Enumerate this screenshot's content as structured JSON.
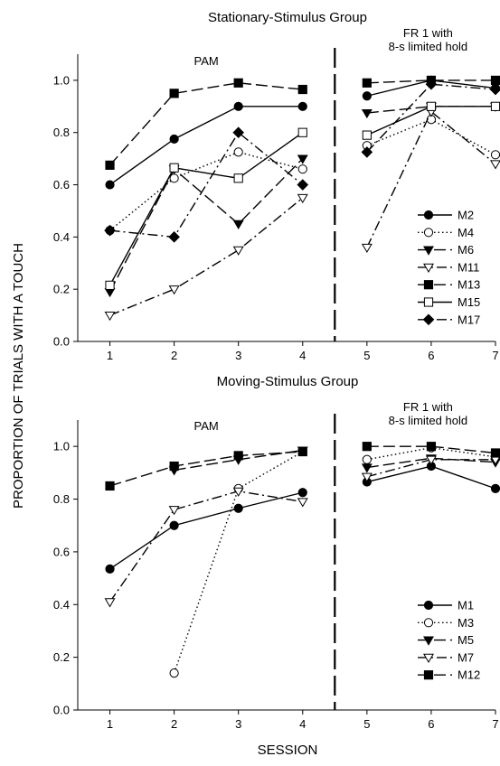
{
  "y_axis_label": "PROPORTION OF TRIALS WITH A TOUCH",
  "x_axis_label": "SESSION",
  "chart_data": [
    {
      "type": "line",
      "title": "Stationary-Stimulus Group",
      "xlabel": "SESSION",
      "ylabel": "PROPORTION OF TRIALS WITH A TOUCH",
      "ylim": [
        0,
        1.1
      ],
      "xlim": [
        0.5,
        7
      ],
      "x_ticks": [
        1,
        2,
        3,
        4,
        5,
        6,
        7
      ],
      "y_ticks": [
        "0.0",
        "0.2",
        "0.4",
        "0.6",
        "0.8",
        "1.0"
      ],
      "grid": false,
      "legend_placement": "lower-right",
      "phase_divider_x": 4.5,
      "phases": [
        {
          "label": "PAM",
          "x_center": 2.5
        },
        {
          "label_lines": [
            "FR 1 with",
            "8-s limited hold"
          ],
          "x_center": 5.95
        }
      ],
      "series": [
        {
          "name": "M2",
          "marker": "filled-circle",
          "dash": "solid",
          "x": [
            1,
            2,
            3,
            4,
            5,
            6,
            7
          ],
          "y": [
            0.6,
            0.775,
            0.9,
            0.9,
            0.94,
            1.0,
            0.97
          ]
        },
        {
          "name": "M4",
          "marker": "open-circle",
          "dash": "dotted",
          "x": [
            1,
            2,
            3,
            4,
            5,
            6,
            7
          ],
          "y": [
            0.425,
            0.625,
            0.725,
            0.66,
            0.75,
            0.85,
            0.715
          ]
        },
        {
          "name": "M6",
          "marker": "filled-triangle",
          "dash": "longdash",
          "x": [
            1,
            2,
            3,
            4,
            5,
            6,
            7
          ],
          "y": [
            0.19,
            0.66,
            0.45,
            0.7,
            0.875,
            0.9,
            0.9
          ]
        },
        {
          "name": "M11",
          "marker": "open-triangle",
          "dash": "dashdot",
          "x": [
            1,
            2,
            3,
            4,
            5,
            6,
            7
          ],
          "y": [
            0.1,
            0.2,
            0.35,
            0.55,
            0.36,
            0.88,
            0.68
          ]
        },
        {
          "name": "M13",
          "marker": "filled-square",
          "dash": "longdash",
          "x": [
            1,
            2,
            3,
            4,
            5,
            6,
            7
          ],
          "y": [
            0.675,
            0.95,
            0.99,
            0.965,
            0.99,
            1.0,
            1.0
          ]
        },
        {
          "name": "M15",
          "marker": "open-square",
          "dash": "solid",
          "x": [
            1,
            2,
            3,
            4,
            5,
            6,
            7
          ],
          "y": [
            0.215,
            0.665,
            0.625,
            0.8,
            0.79,
            0.9,
            0.9
          ]
        },
        {
          "name": "M17",
          "marker": "filled-diamond",
          "dash": "dashdot",
          "x": [
            1,
            2,
            3,
            4,
            5,
            6,
            7
          ],
          "y": [
            0.425,
            0.4,
            0.8,
            0.6,
            0.725,
            0.985,
            0.965
          ]
        }
      ]
    },
    {
      "type": "line",
      "title": "Moving-Stimulus Group",
      "xlabel": "SESSION",
      "ylabel": "PROPORTION OF TRIALS WITH A TOUCH",
      "ylim": [
        0,
        1.1
      ],
      "xlim": [
        0.5,
        7
      ],
      "x_ticks": [
        1,
        2,
        3,
        4,
        5,
        6,
        7
      ],
      "y_ticks": [
        "0.0",
        "0.2",
        "0.4",
        "0.6",
        "0.8",
        "1.0"
      ],
      "grid": false,
      "legend_placement": "lower-right",
      "phase_divider_x": 4.5,
      "phases": [
        {
          "label": "PAM",
          "x_center": 2.5
        },
        {
          "label_lines": [
            "FR 1 with",
            "8-s limited hold"
          ],
          "x_center": 5.95
        }
      ],
      "series": [
        {
          "name": "M1",
          "marker": "filled-circle",
          "dash": "solid",
          "x": [
            1,
            2,
            3,
            4,
            5,
            6,
            7
          ],
          "y": [
            0.535,
            0.7,
            0.765,
            0.825,
            0.865,
            0.925,
            0.84
          ]
        },
        {
          "name": "M3",
          "marker": "open-circle",
          "dash": "dotted",
          "x": [
            2,
            3,
            4,
            5,
            6,
            7
          ],
          "y": [
            0.14,
            0.84,
            0.98,
            0.95,
            0.995,
            0.96
          ]
        },
        {
          "name": "M5",
          "marker": "filled-triangle",
          "dash": "longdash",
          "x": [
            2,
            3,
            4,
            5,
            6,
            7
          ],
          "y": [
            0.91,
            0.95,
            0.985,
            0.92,
            0.955,
            0.94
          ]
        },
        {
          "name": "M7",
          "marker": "open-triangle",
          "dash": "dashdot",
          "x": [
            1,
            2,
            3,
            4,
            5,
            6,
            7
          ],
          "y": [
            0.41,
            0.76,
            0.83,
            0.79,
            0.885,
            0.95,
            0.95
          ]
        },
        {
          "name": "M12",
          "marker": "filled-square",
          "dash": "longdash",
          "x": [
            1,
            2,
            3,
            4,
            5,
            6,
            7
          ],
          "y": [
            0.85,
            0.925,
            0.965,
            0.98,
            1.0,
            1.0,
            0.975
          ]
        }
      ]
    }
  ]
}
